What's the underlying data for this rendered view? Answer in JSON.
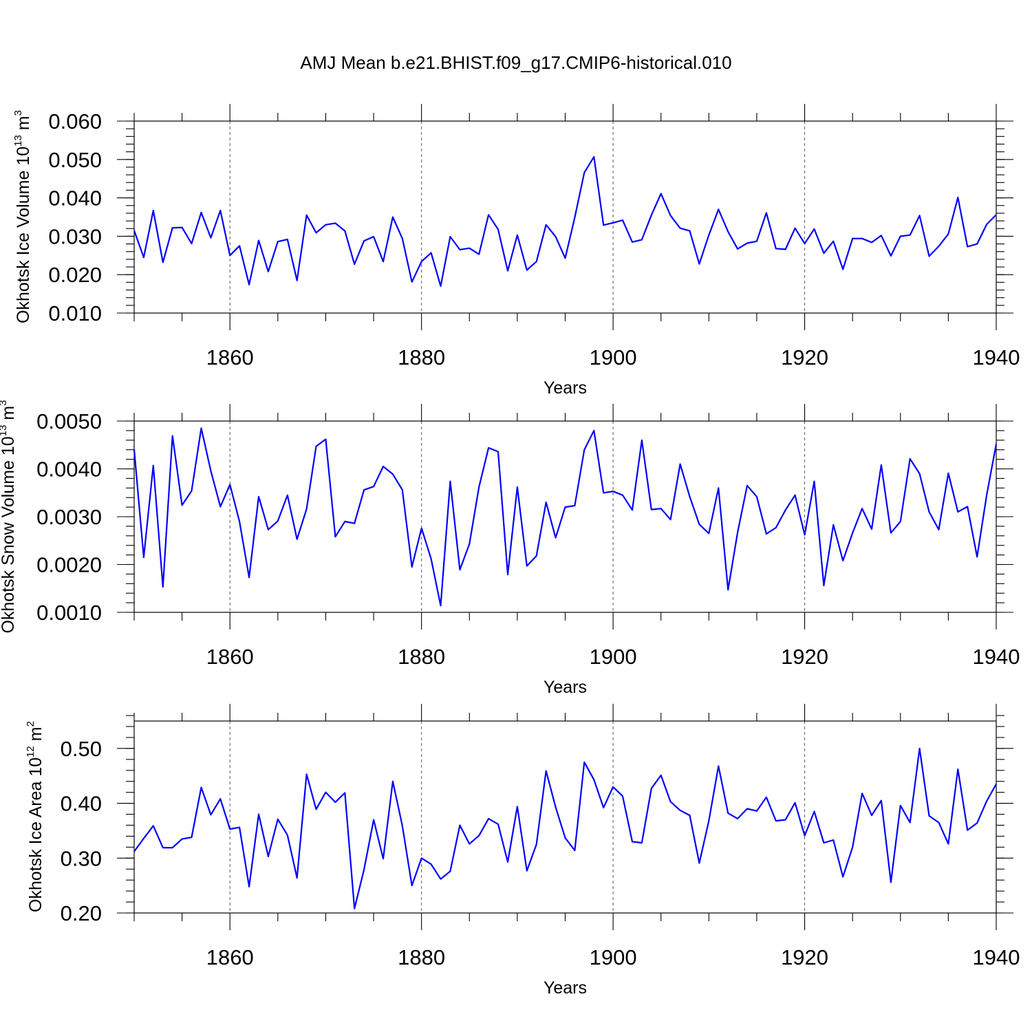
{
  "title": "AMJ Mean b.e21.BHIST.f09_g17.CMIP6-historical.010",
  "chart_data": [
    {
      "type": "line",
      "name": "ice-volume",
      "ylabel_main": "Okhotsk Ice Volume 10",
      "ylabel_exp": "13",
      "ylabel_unit": "m",
      "ylabel_unit_exp": "3",
      "xlabel": "Years",
      "xlim": [
        1850,
        1940
      ],
      "ylim": [
        0.01,
        0.06
      ],
      "x_ticks": [
        1860,
        1880,
        1900,
        1920,
        1940
      ],
      "x_tick_labels": [
        "1860",
        "1880",
        "1900",
        "1920",
        "1940"
      ],
      "y_ticks": [
        0.01,
        0.02,
        0.03,
        0.04,
        0.05,
        0.06
      ],
      "y_tick_labels": [
        "0.010",
        "0.020",
        "0.030",
        "0.040",
        "0.050",
        "0.060"
      ],
      "y_minor_step": 0.002,
      "gridlines": [
        1860,
        1880,
        1900,
        1920
      ],
      "line_color": "#0000ff",
      "x_start": 1850,
      "values": [
        0.0315,
        0.0245,
        0.0367,
        0.0232,
        0.0322,
        0.0323,
        0.0281,
        0.0362,
        0.0296,
        0.0367,
        0.025,
        0.0275,
        0.0174,
        0.0289,
        0.0208,
        0.0286,
        0.0292,
        0.0185,
        0.0355,
        0.0309,
        0.033,
        0.0334,
        0.0314,
        0.0227,
        0.0288,
        0.0299,
        0.0234,
        0.035,
        0.0294,
        0.0181,
        0.0234,
        0.0257,
        0.017,
        0.0299,
        0.0265,
        0.0269,
        0.0253,
        0.0356,
        0.0318,
        0.021,
        0.0303,
        0.0212,
        0.0234,
        0.033,
        0.0299,
        0.0243,
        0.0349,
        0.0466,
        0.0507,
        0.0329,
        0.0335,
        0.0342,
        0.0285,
        0.0291,
        0.0355,
        0.0411,
        0.0354,
        0.0321,
        0.0314,
        0.0228,
        0.0303,
        0.037,
        0.0312,
        0.0267,
        0.0282,
        0.0287,
        0.0361,
        0.0268,
        0.0266,
        0.0321,
        0.0281,
        0.0319,
        0.0256,
        0.0287,
        0.0214,
        0.0294,
        0.0294,
        0.0284,
        0.0302,
        0.0249,
        0.03,
        0.0303,
        0.0354,
        0.0248,
        0.0274,
        0.0306,
        0.0401,
        0.0273,
        0.028,
        0.0331,
        0.0356
      ]
    },
    {
      "type": "line",
      "name": "snow-volume",
      "ylabel_main": "Okhotsk Snow Volume 10",
      "ylabel_exp": "13",
      "ylabel_unit": "m",
      "ylabel_unit_exp": "3",
      "xlabel": "Years",
      "xlim": [
        1850,
        1940
      ],
      "ylim": [
        0.001,
        0.005
      ],
      "x_ticks": [
        1860,
        1880,
        1900,
        1920,
        1940
      ],
      "x_tick_labels": [
        "1860",
        "1880",
        "1900",
        "1920",
        "1940"
      ],
      "y_ticks": [
        0.001,
        0.002,
        0.003,
        0.004,
        0.005
      ],
      "y_tick_labels": [
        "0.0010",
        "0.0020",
        "0.0030",
        "0.0040",
        "0.0050"
      ],
      "y_minor_step": 0.0002,
      "gridlines": [
        1860,
        1880,
        1900,
        1920
      ],
      "line_color": "#0000ff",
      "x_start": 1850,
      "values": [
        0.00441,
        0.00215,
        0.00407,
        0.00153,
        0.00469,
        0.00324,
        0.00354,
        0.00485,
        0.00396,
        0.00321,
        0.00367,
        0.0029,
        0.00173,
        0.00342,
        0.00273,
        0.00291,
        0.00345,
        0.00253,
        0.00316,
        0.00447,
        0.00462,
        0.00258,
        0.0029,
        0.00286,
        0.00356,
        0.00363,
        0.00405,
        0.00389,
        0.00356,
        0.00195,
        0.00276,
        0.00212,
        0.00114,
        0.00374,
        0.00189,
        0.00243,
        0.00362,
        0.00444,
        0.00436,
        0.00179,
        0.00362,
        0.00197,
        0.00218,
        0.0033,
        0.00256,
        0.0032,
        0.00323,
        0.0044,
        0.0048,
        0.0035,
        0.00353,
        0.00345,
        0.00314,
        0.0046,
        0.00315,
        0.00317,
        0.00294,
        0.0041,
        0.00342,
        0.00284,
        0.00265,
        0.0036,
        0.00147,
        0.00267,
        0.00365,
        0.00342,
        0.00264,
        0.00277,
        0.00314,
        0.00345,
        0.00262,
        0.00374,
        0.00156,
        0.00283,
        0.00208,
        0.00266,
        0.00317,
        0.00274,
        0.00408,
        0.00266,
        0.0029,
        0.00421,
        0.0039,
        0.0031,
        0.00273,
        0.00391,
        0.0031,
        0.00321,
        0.00216,
        0.00345,
        0.00452
      ]
    },
    {
      "type": "line",
      "name": "ice-area",
      "ylabel_main": "Okhotsk Ice Area 10",
      "ylabel_exp": "12",
      "ylabel_unit": "m",
      "ylabel_unit_exp": "2",
      "xlabel": "Years",
      "xlim": [
        1850,
        1940
      ],
      "ylim": [
        0.2,
        0.55
      ],
      "x_ticks": [
        1860,
        1880,
        1900,
        1920,
        1940
      ],
      "x_tick_labels": [
        "1860",
        "1880",
        "1900",
        "1920",
        "1940"
      ],
      "y_ticks": [
        0.2,
        0.3,
        0.4,
        0.5
      ],
      "y_tick_labels": [
        "0.20",
        "0.30",
        "0.40",
        "0.50"
      ],
      "y_minor_step": 0.02,
      "gridlines": [
        1860,
        1880,
        1900,
        1920
      ],
      "line_color": "#0000ff",
      "x_start": 1850,
      "values": [
        0.312,
        0.336,
        0.359,
        0.319,
        0.319,
        0.335,
        0.338,
        0.429,
        0.379,
        0.408,
        0.353,
        0.356,
        0.248,
        0.38,
        0.303,
        0.371,
        0.342,
        0.264,
        0.453,
        0.389,
        0.42,
        0.402,
        0.419,
        0.208,
        0.279,
        0.37,
        0.299,
        0.44,
        0.359,
        0.25,
        0.3,
        0.289,
        0.262,
        0.276,
        0.36,
        0.326,
        0.341,
        0.372,
        0.362,
        0.293,
        0.394,
        0.277,
        0.325,
        0.459,
        0.393,
        0.337,
        0.314,
        0.475,
        0.443,
        0.392,
        0.43,
        0.413,
        0.33,
        0.328,
        0.427,
        0.451,
        0.403,
        0.387,
        0.378,
        0.291,
        0.368,
        0.468,
        0.382,
        0.372,
        0.39,
        0.386,
        0.411,
        0.368,
        0.37,
        0.401,
        0.341,
        0.385,
        0.328,
        0.333,
        0.266,
        0.32,
        0.418,
        0.378,
        0.405,
        0.256,
        0.396,
        0.365,
        0.5,
        0.377,
        0.365,
        0.326,
        0.462,
        0.351,
        0.364,
        0.404,
        0.435
      ]
    }
  ]
}
